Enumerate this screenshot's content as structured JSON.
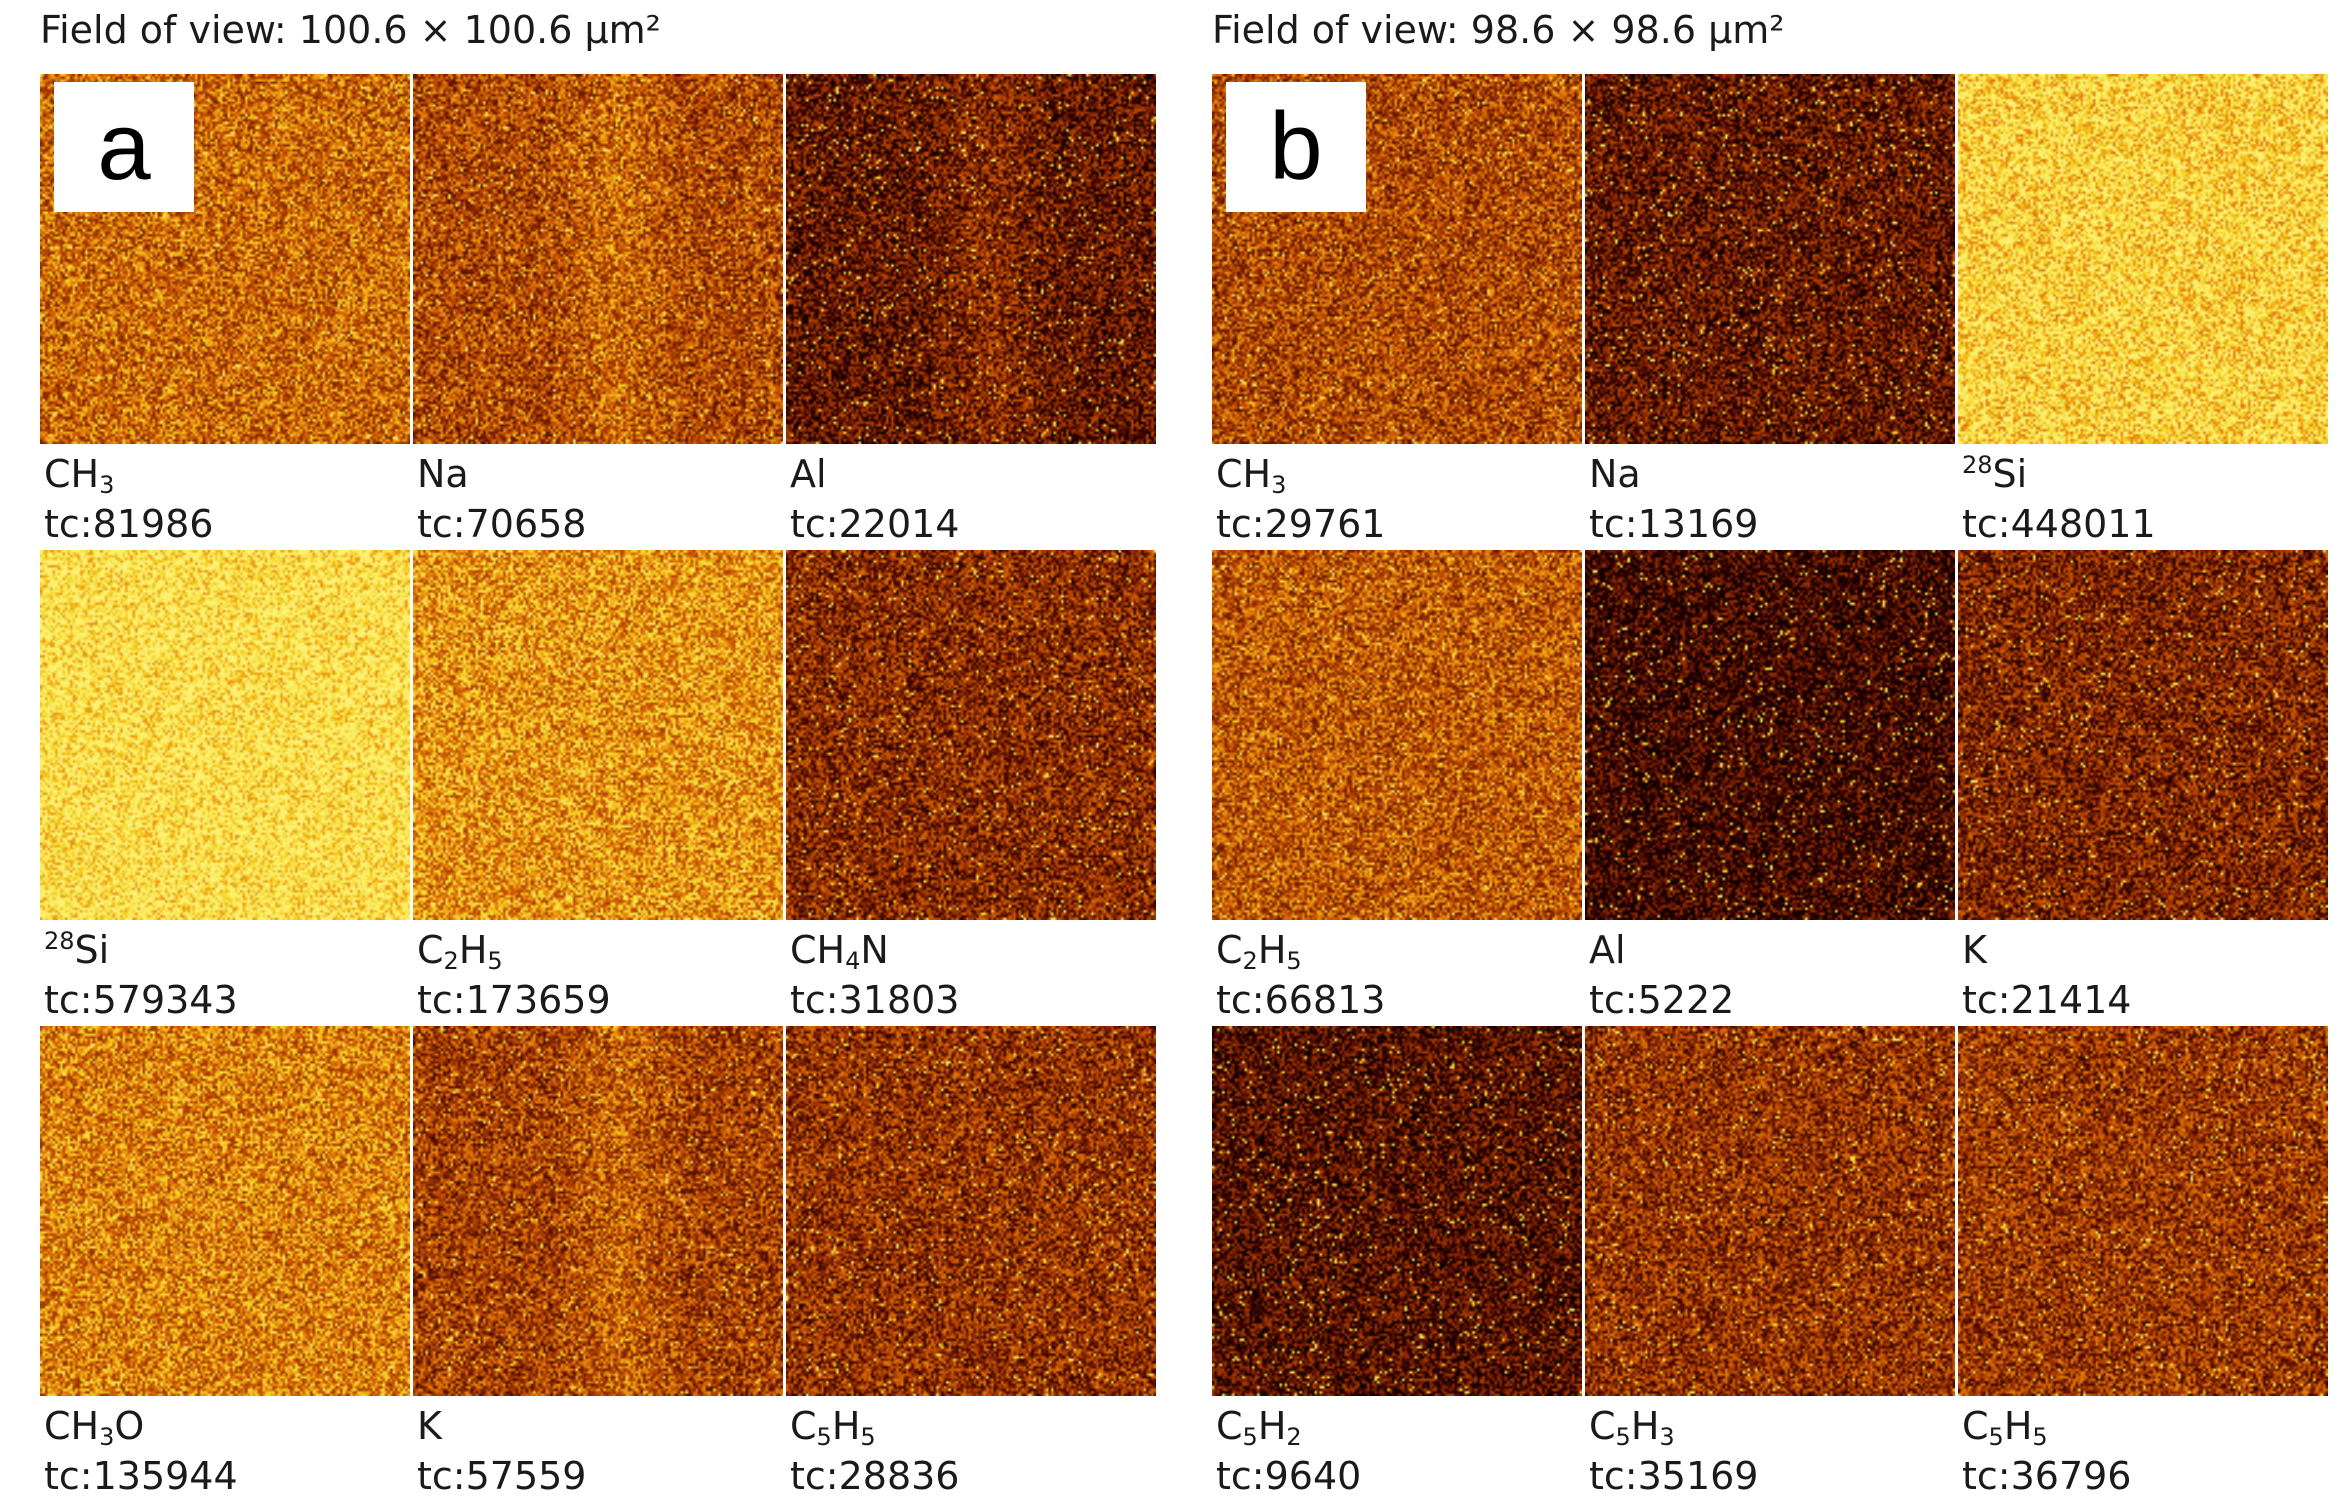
{
  "panels": [
    {
      "letter": "a",
      "field_of_view": "Field of view: 100.6 × 100.6 µm²",
      "maps": [
        {
          "label_html": "CH<sub>3</sub>",
          "label": "CH3",
          "tc": "tc:81986",
          "brightness": 0.55,
          "stripe": false
        },
        {
          "label_html": "Na",
          "label": "Na",
          "tc": "tc:70658",
          "brightness": 0.45,
          "stripe": true
        },
        {
          "label_html": "Al",
          "label": "Al",
          "tc": "tc:22014",
          "brightness": 0.22,
          "stripe": true
        },
        {
          "label_html": "<sup>28</sup>Si",
          "label": "28Si",
          "tc": "tc:579343",
          "brightness": 0.95,
          "stripe": false
        },
        {
          "label_html": "C<sub>2</sub>H<sub>5</sub>",
          "label": "C2H5",
          "tc": "tc:173659",
          "brightness": 0.68,
          "stripe": false
        },
        {
          "label_html": "CH<sub>4</sub>N",
          "label": "CH4N",
          "tc": "tc:31803",
          "brightness": 0.33,
          "stripe": false
        },
        {
          "label_html": "CH<sub>3</sub>O",
          "label": "CH3O",
          "tc": "tc:135944",
          "brightness": 0.62,
          "stripe": false
        },
        {
          "label_html": "K",
          "label": "K",
          "tc": "tc:57559",
          "brightness": 0.42,
          "stripe": true
        },
        {
          "label_html": "C<sub>5</sub>H<sub>5</sub>",
          "label": "C5H5",
          "tc": "tc:28836",
          "brightness": 0.36,
          "stripe": false
        }
      ]
    },
    {
      "letter": "b",
      "field_of_view": "Field of view: 98.6 × 98.6 µm²",
      "maps": [
        {
          "label_html": "CH<sub>3</sub>",
          "label": "CH3",
          "tc": "tc:29761",
          "brightness": 0.45,
          "stripe": false
        },
        {
          "label_html": "Na",
          "label": "Na",
          "tc": "tc:13169",
          "brightness": 0.22,
          "stripe": false
        },
        {
          "label_html": "<sup>28</sup>Si",
          "label": "28Si",
          "tc": "tc:448011",
          "brightness": 0.88,
          "stripe": false
        },
        {
          "label_html": "C<sub>2</sub>H<sub>5</sub>",
          "label": "C2H5",
          "tc": "tc:66813",
          "brightness": 0.5,
          "stripe": false
        },
        {
          "label_html": "Al",
          "label": "Al",
          "tc": "tc:5222",
          "brightness": 0.12,
          "stripe": false
        },
        {
          "label_html": "K",
          "label": "K",
          "tc": "tc:21414",
          "brightness": 0.3,
          "stripe": false
        },
        {
          "label_html": "C<sub>5</sub>H<sub>2</sub>",
          "label": "C5H2",
          "tc": "tc:9640",
          "brightness": 0.18,
          "stripe": false
        },
        {
          "label_html": "C<sub>5</sub>H<sub>3</sub>",
          "label": "C5H3",
          "tc": "tc:35169",
          "brightness": 0.36,
          "stripe": false
        },
        {
          "label_html": "C<sub>5</sub>H<sub>5</sub>",
          "label": "C5H5",
          "tc": "tc:36796",
          "brightness": 0.38,
          "stripe": false
        }
      ]
    }
  ],
  "colormap": [
    "#120000",
    "#4a0800",
    "#8a2a00",
    "#c45000",
    "#e88a10",
    "#f5d020",
    "#fbf070"
  ]
}
